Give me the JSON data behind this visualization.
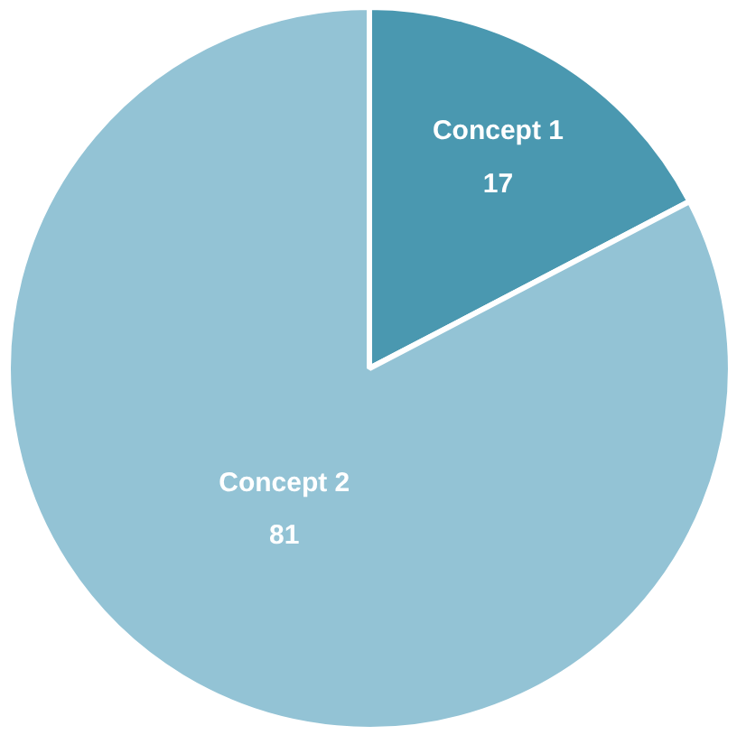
{
  "chart_data": {
    "type": "pie",
    "categories": [
      "Concept 1",
      "Concept 2"
    ],
    "values": [
      17,
      81
    ],
    "colors": [
      "#4a98b0",
      "#93c3d5"
    ],
    "data_labels": true
  }
}
